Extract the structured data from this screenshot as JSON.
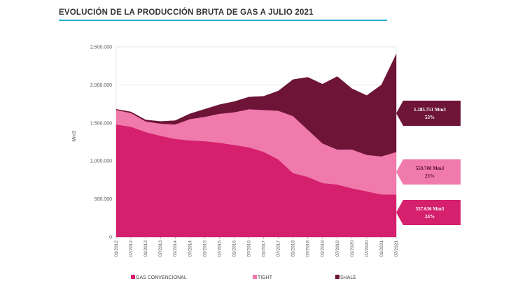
{
  "title": "EVOLUCIÓN DE LA PRODUCCIÓN BRUTA DE GAS A JULIO 2021",
  "colors": {
    "rule": "#2bb0d4",
    "convencional": "#d4206d",
    "tight": "#f07aab",
    "shale": "#6d1437",
    "grid": "#e0e0e0"
  },
  "chart_data": {
    "type": "area",
    "stacked": true,
    "title": "",
    "ylabel": "Mm3",
    "ylim": [
      0,
      2500000
    ],
    "y_ticks": [
      "0",
      "500.000",
      "1.000.000",
      "1.500.000",
      "2.000.000",
      "2.500.000"
    ],
    "x_tick_labels": [
      "01/2012",
      "07/2012",
      "01/2013",
      "07/2013",
      "01/2014",
      "07/2014",
      "01/2015",
      "07/2015",
      "01/2016",
      "07/2016",
      "01/2017",
      "07/2017",
      "01/2018",
      "07/2018",
      "01/2019",
      "07/2019",
      "01/2020",
      "07/2020",
      "01/2021",
      "07/2021"
    ],
    "x_note": "approximate semiannual readings (one value per half-year), 01/2012 to 07/2021",
    "series": [
      {
        "name": "GAS CONVENCIONAL",
        "values": [
          1480000,
          1450000,
          1380000,
          1330000,
          1290000,
          1270000,
          1260000,
          1240000,
          1210000,
          1180000,
          1120000,
          1020000,
          840000,
          790000,
          710000,
          690000,
          640000,
          600000,
          560000,
          557636
        ]
      },
      {
        "name": "TIGHT",
        "values": [
          190000,
          180000,
          140000,
          160000,
          190000,
          280000,
          320000,
          380000,
          430000,
          500000,
          550000,
          640000,
          750000,
          620000,
          520000,
          460000,
          510000,
          480000,
          500000,
          559708
        ]
      },
      {
        "name": "SHALE",
        "values": [
          10000,
          15000,
          20000,
          30000,
          50000,
          70000,
          100000,
          120000,
          140000,
          160000,
          180000,
          260000,
          480000,
          690000,
          780000,
          960000,
          800000,
          780000,
          940000,
          1285751
        ]
      }
    ],
    "callouts": [
      {
        "series": "SHALE",
        "value": "1.285.751 Mm3",
        "pct": "53%"
      },
      {
        "series": "TIGHT",
        "value": "559.708 Mm3",
        "pct": "23%"
      },
      {
        "series": "GAS CONVENCIONAL",
        "value": "557.636 Mm3",
        "pct": "24%"
      }
    ],
    "legend": [
      {
        "label": "GAS CONVENCIONAL",
        "color": "#d4206d"
      },
      {
        "label": "TIGHT",
        "color": "#f07aab"
      },
      {
        "label": "SHALE",
        "color": "#6d1437"
      }
    ],
    "grid": true,
    "legend_position": "bottom"
  }
}
